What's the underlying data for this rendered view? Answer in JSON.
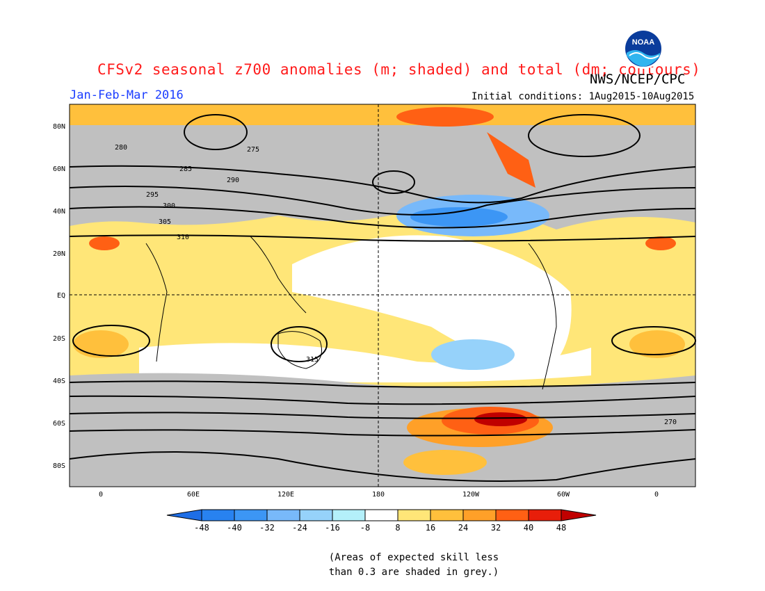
{
  "header": {
    "title": "CFSv2 seasonal z700 anomalies (m; shaded) and total (dm; contours)",
    "agency": "NWS/NCEP/CPC",
    "season": "Jan-Feb-Mar 2016",
    "initial_conditions": "Initial conditions: 1Aug2015-10Aug2015",
    "logo_text": "NOAA"
  },
  "map": {
    "lat_labels": [
      "80N",
      "60N",
      "40N",
      "20N",
      "EQ",
      "20S",
      "40S",
      "60S",
      "80S"
    ],
    "lon_labels": [
      "0",
      "60E",
      "120E",
      "180",
      "120W",
      "60W",
      "0"
    ],
    "contour_labels": [
      "275",
      "280",
      "285",
      "290",
      "295",
      "300",
      "305",
      "310",
      "315",
      "270"
    ]
  },
  "colorbar": {
    "ticks": [
      "-48",
      "-40",
      "-32",
      "-24",
      "-16",
      "-8",
      "8",
      "16",
      "24",
      "32",
      "40",
      "48"
    ],
    "colors": [
      "#1e6ee6",
      "#2882f0",
      "#3c96f5",
      "#78b9fa",
      "#96d2fa",
      "#b4f0fa",
      "#ffffff",
      "#ffe678",
      "#ffc03c",
      "#ffa028",
      "#ff6014",
      "#e81e0a",
      "#c00000"
    ]
  },
  "note": {
    "line1": "(Areas of expected skill less",
    "line2": "than 0.3 are shaded in grey.)"
  }
}
